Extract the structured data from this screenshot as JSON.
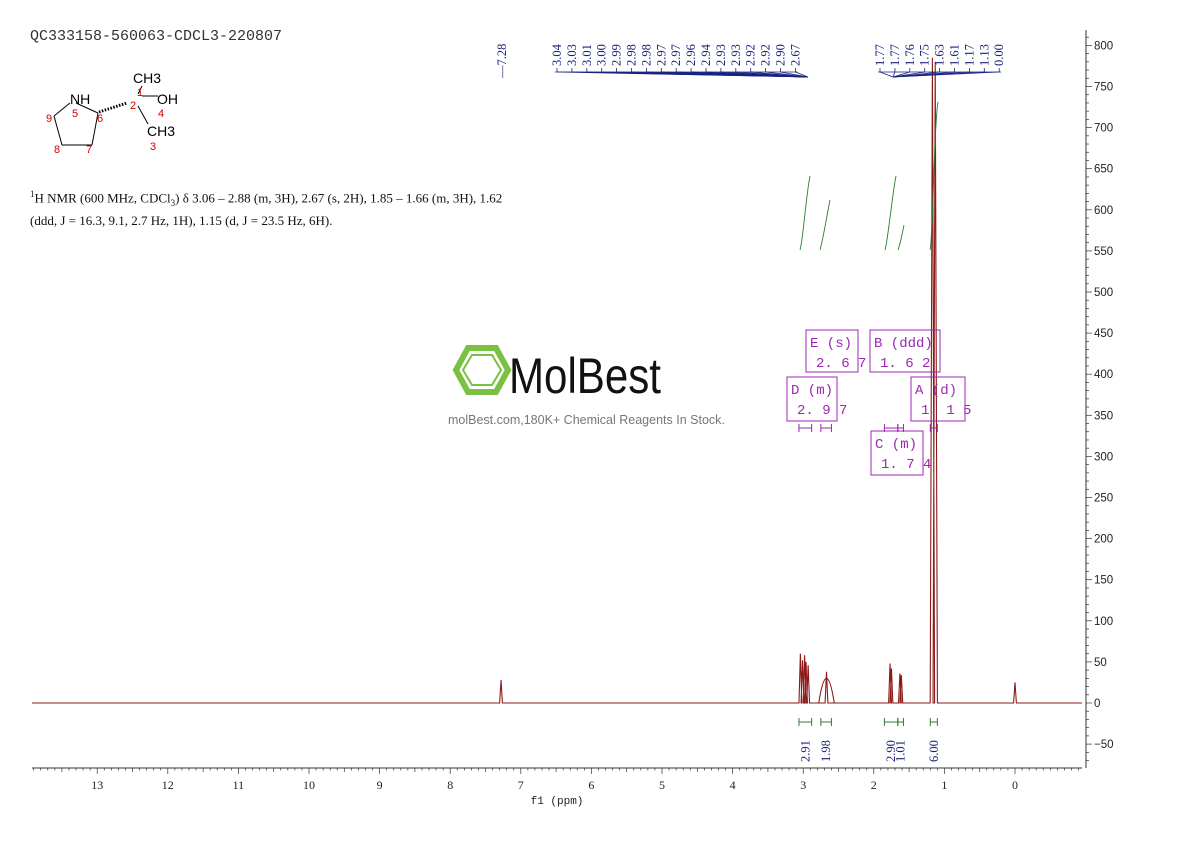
{
  "sample_id": "QC333158-560063-CDCL3-220807",
  "nmr_description": {
    "prefix_sup": "1",
    "prefix": "H NMR (600 MHz, CDCl",
    "sub": "3",
    "line1_rest": ") δ 3.06 – 2.88 (m, 3H), 2.67 (s, 2H), 1.85 – 1.66 (m, 3H), 1.62",
    "line2": "(ddd, J = 16.3, 9.1, 2.7 Hz, 1H), 1.15 (d, J = 23.5 Hz, 6H)."
  },
  "structure": {
    "labels": {
      "ch3_top": "CH3",
      "oh": "OH",
      "ch3_bottom": "CH3",
      "nh": "NH",
      "n1": "1",
      "n2": "2",
      "n3": "3",
      "n4": "4",
      "n5": "5",
      "n6": "6",
      "n7": "7",
      "n8": "8",
      "n9": "9"
    },
    "number_color": "#d00000"
  },
  "watermark": {
    "brand": "MolBest",
    "tagline": "molBest.com,180K+ Chemical Reagents In Stock.",
    "logo_color": "#7ac143",
    "text_color": "#111111"
  },
  "colors": {
    "spectrum": "#8b1a1a",
    "peak_labels": "#1a237e",
    "integral": "#2e7d32",
    "multiplet_box": "#9c27b0",
    "axis": "#333333"
  },
  "chart_data": {
    "type": "line",
    "xlabel": "f1 (ppm)",
    "x_reversed": true,
    "xlim": [
      14.0,
      -1.0
    ],
    "ylim": [
      -80,
      820
    ],
    "x_ticks": [
      13,
      12,
      11,
      10,
      9,
      8,
      7,
      6,
      5,
      4,
      3,
      2,
      1,
      0
    ],
    "y_ticks": [
      -50,
      0,
      50,
      100,
      150,
      200,
      250,
      300,
      350,
      400,
      450,
      500,
      550,
      600,
      650,
      700,
      750,
      800
    ],
    "peak_labels_left": [
      "7.28"
    ],
    "peak_labels_group1": [
      "3.04",
      "3.03",
      "3.01",
      "3.00",
      "2.99",
      "2.98",
      "2.98",
      "2.97",
      "2.97",
      "2.96",
      "2.94",
      "2.93",
      "2.93",
      "2.92",
      "2.92",
      "2.90",
      "2.67"
    ],
    "peak_labels_group2": [
      "1.77",
      "1.77",
      "1.76",
      "1.75",
      "1.63",
      "1.61",
      "1.17",
      "1.13",
      "0.00"
    ],
    "peaks": [
      {
        "x": 7.28,
        "y": 28
      },
      {
        "x": 3.04,
        "y": 60
      },
      {
        "x": 3.01,
        "y": 52
      },
      {
        "x": 2.98,
        "y": 58
      },
      {
        "x": 2.96,
        "y": 50
      },
      {
        "x": 2.93,
        "y": 46
      },
      {
        "x": 2.67,
        "y": 38
      },
      {
        "x": 1.77,
        "y": 48
      },
      {
        "x": 1.75,
        "y": 42
      },
      {
        "x": 1.63,
        "y": 36
      },
      {
        "x": 1.61,
        "y": 34
      },
      {
        "x": 1.17,
        "y": 785
      },
      {
        "x": 1.13,
        "y": 780
      },
      {
        "x": 0.0,
        "y": 25
      }
    ],
    "multiplets": [
      {
        "id": "E",
        "type": "s",
        "shift": "2.67",
        "x_from": 2.75,
        "x_to": 2.6
      },
      {
        "id": "D",
        "type": "m",
        "shift": "2.97",
        "x_from": 3.06,
        "x_to": 2.88
      },
      {
        "id": "B",
        "type": "ddd",
        "shift": "1.62",
        "x_from": 1.66,
        "x_to": 1.58
      },
      {
        "id": "C",
        "type": "m",
        "shift": "1.74",
        "x_from": 1.85,
        "x_to": 1.66
      },
      {
        "id": "A",
        "type": "d",
        "shift": "1.15",
        "x_from": 1.2,
        "x_to": 1.1
      }
    ],
    "integrals": [
      {
        "value": "2.91",
        "x_from": 3.06,
        "x_to": 2.88
      },
      {
        "value": "1.98",
        "x_from": 2.75,
        "x_to": 2.6
      },
      {
        "value": "2.90",
        "x_from": 1.85,
        "x_to": 1.66
      },
      {
        "value": "1.01",
        "x_from": 1.66,
        "x_to": 1.58
      },
      {
        "value": "6.00",
        "x_from": 1.2,
        "x_to": 1.1
      }
    ]
  }
}
